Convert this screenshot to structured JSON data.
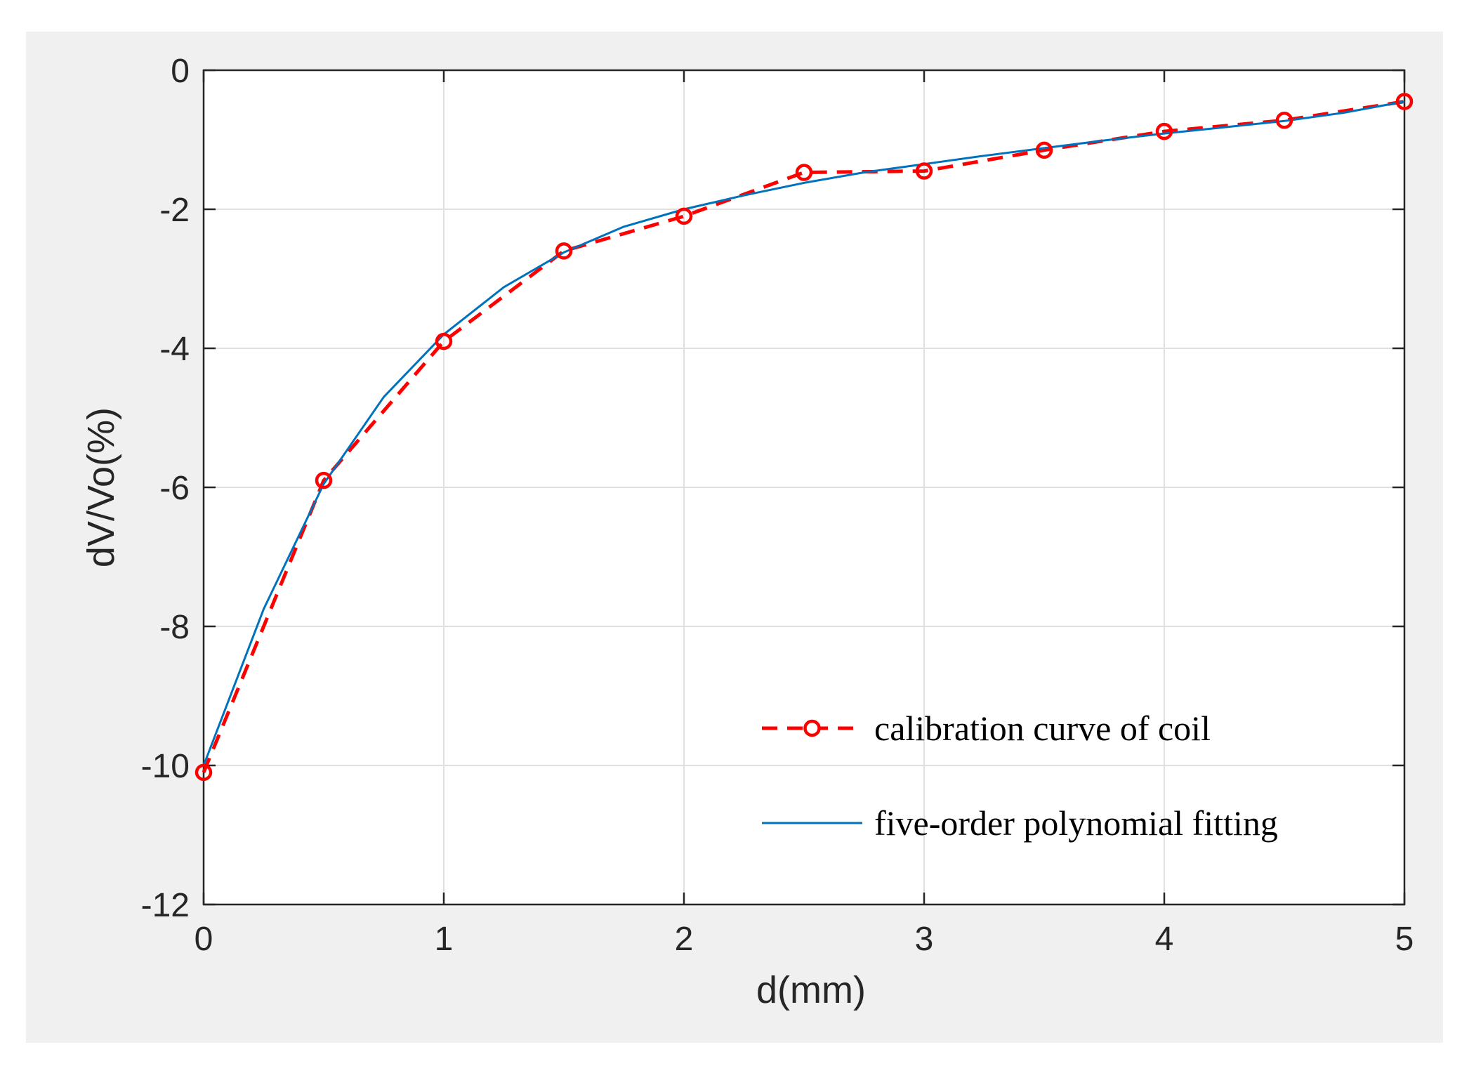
{
  "chart_data": {
    "type": "line",
    "title": "",
    "xlabel": "d(mm)",
    "ylabel": "dV/Vo(%)",
    "xlim": [
      0,
      5
    ],
    "ylim": [
      -12,
      0
    ],
    "xticks": [
      0,
      1,
      2,
      3,
      4,
      5
    ],
    "yticks": [
      0,
      -2,
      -4,
      -6,
      -8,
      -10,
      -12
    ],
    "grid": true,
    "legend_position": "bottom-right",
    "series": [
      {
        "name": "calibration curve of coil",
        "style": "dashed-with-circle-markers",
        "color": "#ff0000",
        "x": [
          0,
          0.5,
          1,
          1.5,
          2,
          2.5,
          3,
          3.5,
          4,
          4.5,
          5
        ],
        "y": [
          -10.1,
          -5.9,
          -3.9,
          -2.6,
          -2.1,
          -1.47,
          -1.45,
          -1.15,
          -0.88,
          -0.72,
          -0.45
        ]
      },
      {
        "name": "five-order polynomial fitting",
        "style": "solid",
        "color": "#0072bd",
        "x": [
          0,
          0.25,
          0.5,
          0.75,
          1,
          1.25,
          1.5,
          1.75,
          2,
          2.25,
          2.5,
          2.75,
          3,
          3.25,
          3.5,
          3.75,
          4,
          4.25,
          4.5,
          4.75,
          5
        ],
        "y": [
          -10.0,
          -7.75,
          -5.95,
          -4.7,
          -3.8,
          -3.12,
          -2.62,
          -2.25,
          -2.0,
          -1.8,
          -1.62,
          -1.47,
          -1.35,
          -1.23,
          -1.12,
          -1.01,
          -0.91,
          -0.82,
          -0.73,
          -0.61,
          -0.45
        ]
      }
    ]
  }
}
